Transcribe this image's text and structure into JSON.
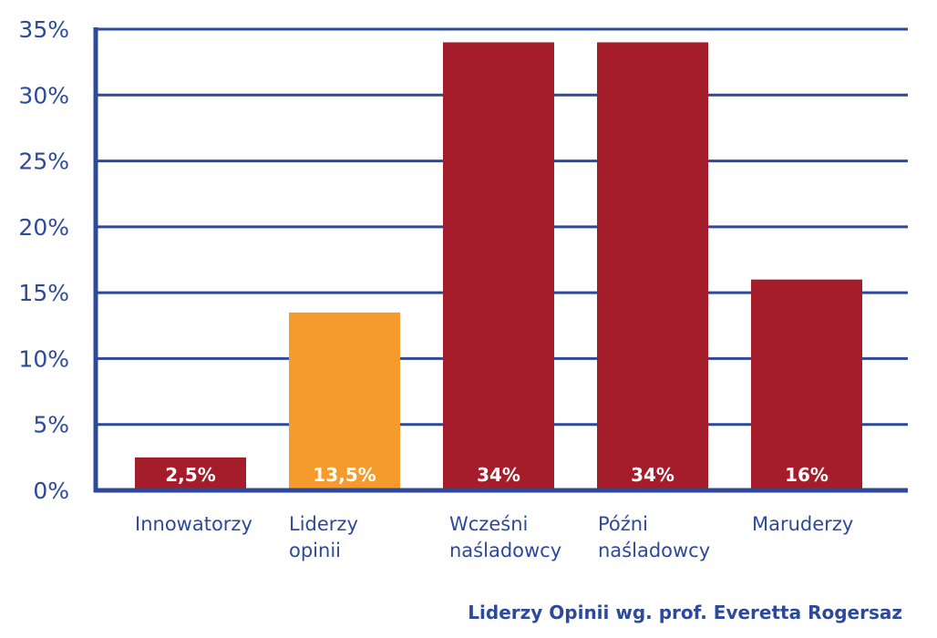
{
  "chart_data": {
    "type": "bar",
    "categories": [
      [
        "Innowatorzy"
      ],
      [
        "Liderzy",
        "opinii"
      ],
      [
        "Wcześni",
        "naśladowcy"
      ],
      [
        "Późni",
        "naśladowcy"
      ],
      [
        "Maruderzy"
      ]
    ],
    "values": [
      2.5,
      13.5,
      34,
      34,
      16
    ],
    "data_labels": [
      "2,5%",
      "13,5%",
      "34%",
      "34%",
      "16%"
    ],
    "bar_colors": [
      "#a51c2a",
      "#f59a2c",
      "#a51c2a",
      "#a51c2a",
      "#a51c2a"
    ],
    "y_ticks": [
      {
        "value": 0,
        "label": "0%"
      },
      {
        "value": 5,
        "label": "5%"
      },
      {
        "value": 10,
        "label": "10%"
      },
      {
        "value": 15,
        "label": "15%"
      },
      {
        "value": 20,
        "label": "20%"
      },
      {
        "value": 25,
        "label": "25%"
      },
      {
        "value": 30,
        "label": "30%"
      },
      {
        "value": 35,
        "label": "35%"
      }
    ],
    "ylim": [
      0,
      35
    ],
    "grid": true,
    "axis_color": "#2d4a9a",
    "title": "",
    "xlabel": "",
    "ylabel": ""
  },
  "source_caption": "Liderzy Opinii wg. prof. Everetta Rogersaz"
}
